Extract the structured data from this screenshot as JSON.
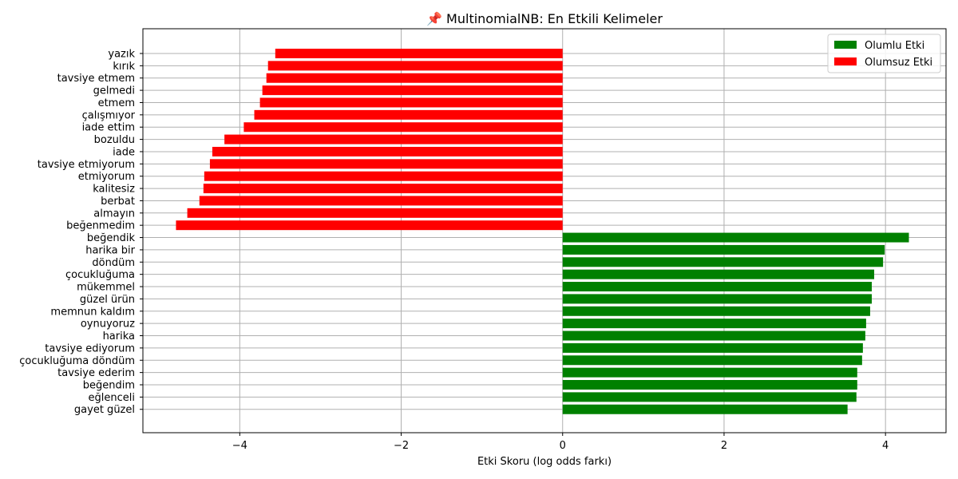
{
  "chart_data": {
    "type": "bar",
    "orientation": "horizontal",
    "title": "📌 MultinomialNB: En Etkili Kelimeler",
    "xlabel": "Etki Skoru (log odds farkı)",
    "ylabel": "",
    "xlim": [
      -5.2,
      4.75
    ],
    "xticks": [
      -4,
      -2,
      0,
      2,
      4
    ],
    "xtick_labels": [
      "−4",
      "−2",
      "0",
      "2",
      "4"
    ],
    "grid": true,
    "legend_position": "top-right",
    "legend": [
      {
        "label": "Olumlu Etki",
        "color": "#008000"
      },
      {
        "label": "Olumsuz Etki",
        "color": "#ff0000"
      }
    ],
    "categories": [
      "yazık",
      "kırık",
      "tavsiye etmem",
      "gelmedi",
      "etmem",
      "çalışmıyor",
      "iade ettim",
      "bozuldu",
      "iade",
      "tavsiye etmiyorum",
      "etmiyorum",
      "kalitesiz",
      "berbat",
      "almayın",
      "beğenmedim",
      "beğendik",
      "harika bir",
      "döndüm",
      "çocukluğuma",
      "mükemmel",
      "güzel ürün",
      "memnun kaldım",
      "oynuyoruz",
      "harika",
      "tavsiye ediyorum",
      "çocukluğuma döndüm",
      "tavsiye ederim",
      "beğendim",
      "eğlenceli",
      "gayet güzel"
    ],
    "values": [
      -3.56,
      -3.65,
      -3.67,
      -3.72,
      -3.75,
      -3.82,
      -3.95,
      -4.19,
      -4.34,
      -4.37,
      -4.44,
      -4.45,
      -4.5,
      -4.65,
      -4.79,
      4.29,
      3.99,
      3.97,
      3.86,
      3.83,
      3.83,
      3.81,
      3.76,
      3.75,
      3.72,
      3.71,
      3.65,
      3.65,
      3.64,
      3.53
    ],
    "colors": [
      "#ff0000",
      "#ff0000",
      "#ff0000",
      "#ff0000",
      "#ff0000",
      "#ff0000",
      "#ff0000",
      "#ff0000",
      "#ff0000",
      "#ff0000",
      "#ff0000",
      "#ff0000",
      "#ff0000",
      "#ff0000",
      "#ff0000",
      "#008000",
      "#008000",
      "#008000",
      "#008000",
      "#008000",
      "#008000",
      "#008000",
      "#008000",
      "#008000",
      "#008000",
      "#008000",
      "#008000",
      "#008000",
      "#008000",
      "#008000"
    ]
  }
}
